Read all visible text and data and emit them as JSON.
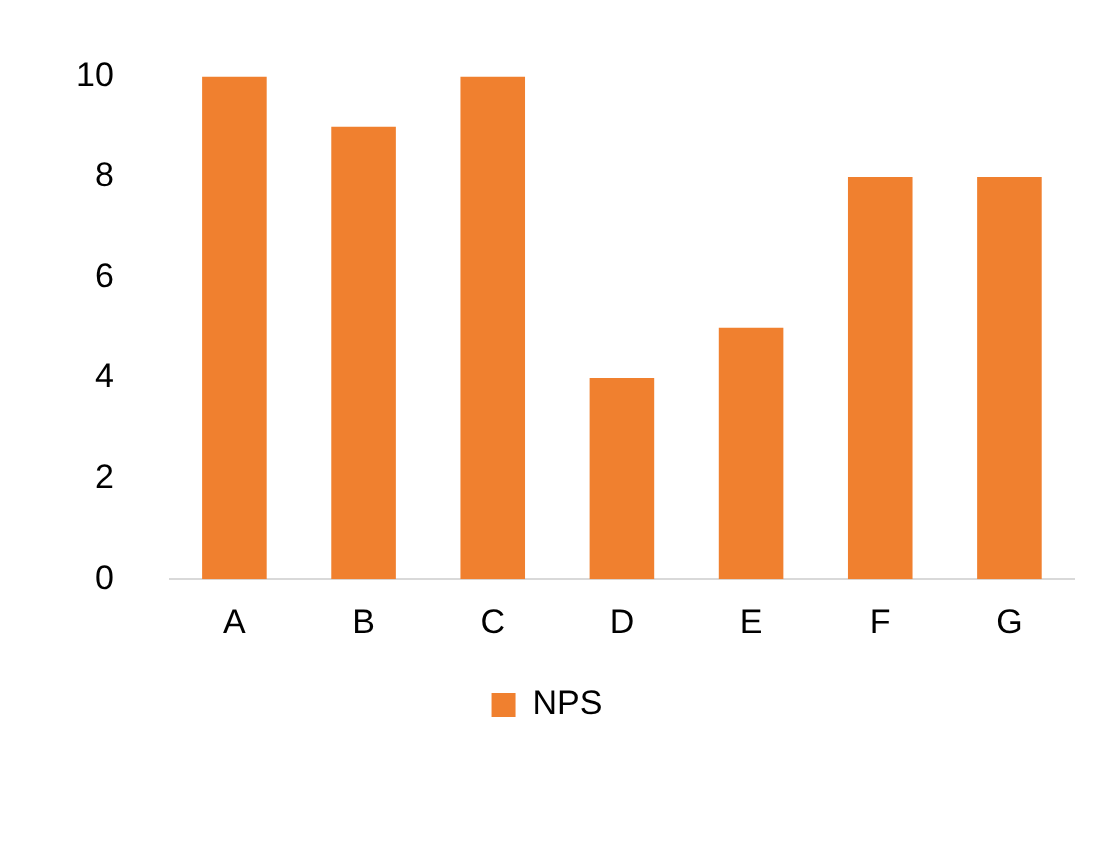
{
  "chart_data": {
    "type": "bar",
    "categories": [
      "A",
      "B",
      "C",
      "D",
      "E",
      "F",
      "G"
    ],
    "series": [
      {
        "name": "NPS",
        "color": "#f0802f",
        "values": [
          10,
          9,
          10,
          4,
          5,
          8,
          8
        ]
      }
    ],
    "ylim": [
      0,
      10
    ],
    "yticks": [
      0,
      2,
      4,
      6,
      8,
      10
    ],
    "grid": false,
    "legend": "bottom"
  }
}
